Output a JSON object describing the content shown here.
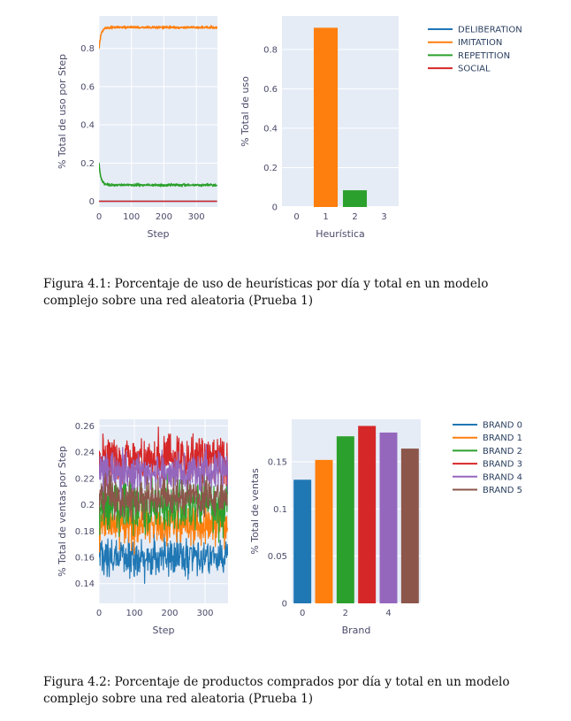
{
  "figures": [
    {
      "caption": "Figura 4.1: Porcentaje de uso de heurísticas por día y total en un modelo complejo sobre una red aleatoria (Prueba 1)",
      "chart_data": [
        {
          "type": "line",
          "xlabel": "Step",
          "ylabel": "% Total de uso por Step",
          "xlim": [
            0,
            365
          ],
          "ylim": [
            -0.03,
            0.97
          ],
          "xticks": [
            "0",
            "100",
            "200",
            "300"
          ],
          "yticks": [
            "0",
            "0.2",
            "0.4",
            "0.6",
            "0.8"
          ],
          "grid": true,
          "legend_position": "right",
          "series": [
            {
              "name": "DELIBERATION",
              "color": "#1f77b4",
              "start": 0.0,
              "steady": 0.0,
              "noise": 0.0
            },
            {
              "name": "IMITATION",
              "color": "#ff7f0e",
              "start": 0.8,
              "steady": 0.91,
              "noise": 0.006
            },
            {
              "name": "REPETITION",
              "color": "#2ca02c",
              "start": 0.2,
              "steady": 0.085,
              "noise": 0.006
            },
            {
              "name": "SOCIAL",
              "color": "#d62728",
              "start": 0.0,
              "steady": 0.0,
              "noise": 0.0
            }
          ]
        },
        {
          "type": "bar",
          "xlabel": "Heurística",
          "ylabel": "% Total de uso",
          "xlim": [
            -0.5,
            3.5
          ],
          "ylim": [
            0,
            0.97
          ],
          "xticks": [
            "0",
            "1",
            "2",
            "3"
          ],
          "yticks": [
            "0",
            "0.2",
            "0.4",
            "0.6",
            "0.8"
          ],
          "grid": true,
          "bars": [
            {
              "x": 1,
              "value": 0.91,
              "color": "#ff7f0e"
            },
            {
              "x": 2,
              "value": 0.085,
              "color": "#2ca02c"
            }
          ]
        }
      ]
    },
    {
      "caption": "Figura 4.2: Porcentaje de productos comprados por día y total en un modelo complejo sobre una red aleatoria (Prueba 1)",
      "chart_data": [
        {
          "type": "line",
          "xlabel": "Step",
          "ylabel": "% Total de ventas por Step",
          "xlim": [
            0,
            365
          ],
          "ylim": [
            0.125,
            0.265
          ],
          "xticks": [
            "0",
            "100",
            "200",
            "300"
          ],
          "yticks": [
            "0.14",
            "0.16",
            "0.18",
            "0.2",
            "0.22",
            "0.24",
            "0.26"
          ],
          "grid": true,
          "legend_position": "right",
          "series": [
            {
              "name": "BRAND 0",
              "color": "#1f77b4",
              "mean": 0.16,
              "noise": 0.009
            },
            {
              "name": "BRAND 1",
              "color": "#ff7f0e",
              "mean": 0.185,
              "noise": 0.01
            },
            {
              "name": "BRAND 2",
              "color": "#2ca02c",
              "mean": 0.2,
              "noise": 0.012
            },
            {
              "name": "BRAND 3",
              "color": "#d62728",
              "mean": 0.235,
              "noise": 0.011
            },
            {
              "name": "BRAND 4",
              "color": "#9467bd",
              "mean": 0.225,
              "noise": 0.01
            },
            {
              "name": "BRAND 5",
              "color": "#8c564b",
              "mean": 0.205,
              "noise": 0.009
            }
          ]
        },
        {
          "type": "bar",
          "xlabel": "Brand",
          "ylabel": "% Total de ventas",
          "xlim": [
            -0.5,
            5.5
          ],
          "ylim": [
            0,
            0.195
          ],
          "xticks": [
            "0",
            "2",
            "4"
          ],
          "yticks": [
            "0",
            "0.05",
            "0.1",
            "0.15"
          ],
          "grid": true,
          "bars": [
            {
              "x": 0,
              "value": 0.131,
              "color": "#1f77b4"
            },
            {
              "x": 1,
              "value": 0.152,
              "color": "#ff7f0e"
            },
            {
              "x": 2,
              "value": 0.177,
              "color": "#2ca02c"
            },
            {
              "x": 3,
              "value": 0.188,
              "color": "#d62728"
            },
            {
              "x": 4,
              "value": 0.181,
              "color": "#9467bd"
            },
            {
              "x": 5,
              "value": 0.164,
              "color": "#8c564b"
            }
          ]
        }
      ]
    }
  ]
}
